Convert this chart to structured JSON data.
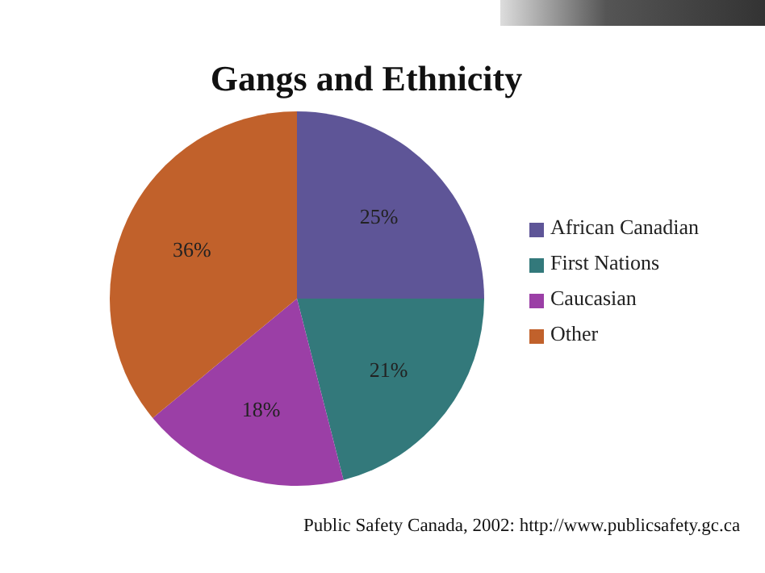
{
  "chart_data": {
    "type": "pie",
    "title": "Gangs and Ethnicity",
    "categories": [
      "African Canadian",
      "First Nations",
      "Caucasian",
      "Other"
    ],
    "values": [
      25,
      21,
      18,
      36
    ],
    "colors": [
      "#5e5597",
      "#33797b",
      "#9b3fa6",
      "#c1612b"
    ],
    "value_labels": [
      "25%",
      "21%",
      "18%",
      "36%"
    ],
    "legend": "right",
    "annotations": [
      "Public Safety Canada, 2002: http://www.publicsafety.gc.ca"
    ]
  }
}
